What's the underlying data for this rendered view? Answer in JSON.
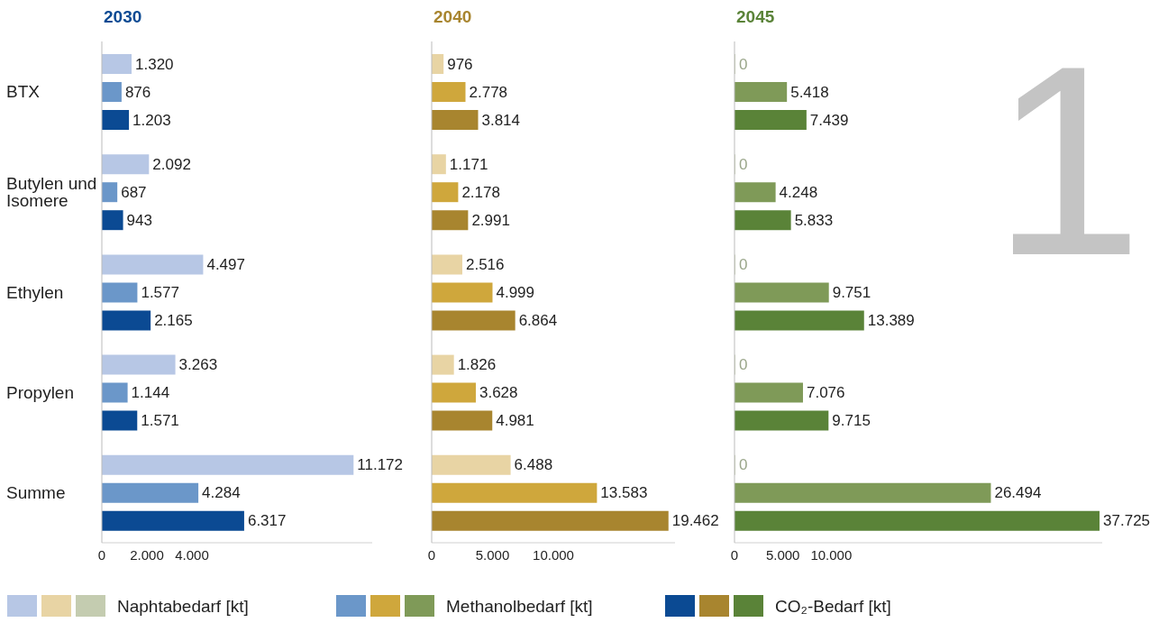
{
  "chart_data": [
    {
      "type": "bar",
      "orientation": "horizontal",
      "title": "2030",
      "categories": [
        "BTX",
        "Butylen und Isomere",
        "Ethylen",
        "Propylen",
        "Summe"
      ],
      "xlim": [
        0,
        12000
      ],
      "xticks": [
        {
          "value": 0,
          "label": "0"
        },
        {
          "value": 2000,
          "label": "2.000"
        },
        {
          "value": 4000,
          "label": "4.000"
        }
      ],
      "series": [
        {
          "color": "#b7c7e5",
          "values": [
            1320,
            2092,
            4497,
            3263,
            11172
          ],
          "value_labels": [
            "1.320",
            "2.092",
            "4.497",
            "3.263",
            "11.172"
          ]
        },
        {
          "color": "#6b97c9",
          "values": [
            876,
            687,
            1577,
            1144,
            4284
          ],
          "value_labels": [
            "876",
            "687",
            "1.577",
            "1.144",
            "4.284"
          ]
        },
        {
          "color": "#0b4a93",
          "values": [
            1203,
            943,
            2165,
            1571,
            6317
          ],
          "value_labels": [
            "1.203",
            "943",
            "2.165",
            "1.571",
            "6.317"
          ]
        }
      ]
    },
    {
      "type": "bar",
      "orientation": "horizontal",
      "title": "2040",
      "tick_labels": "x",
      "xlim": [
        0,
        20000
      ],
      "xticks": [
        {
          "value": 0,
          "label": "0"
        },
        {
          "value": 5000,
          "label": "5.000"
        },
        {
          "value": 10000,
          "label": "10.000"
        }
      ],
      "series": [
        {
          "color": "#e8d4a4",
          "values": [
            976,
            1171,
            2516,
            1826,
            6488
          ],
          "value_labels": [
            "976",
            "1.171",
            "2.516",
            "1.826",
            "6.488"
          ]
        },
        {
          "color": "#cfa73c",
          "values": [
            2778,
            2178,
            4999,
            3628,
            13583
          ],
          "value_labels": [
            "2.778",
            "2.178",
            "4.999",
            "3.628",
            "13.583"
          ]
        },
        {
          "color": "#a8852f",
          "values": [
            3814,
            2991,
            6864,
            4981,
            19462
          ],
          "value_labels": [
            "3.814",
            "2.991",
            "6.864",
            "4.981",
            "19.462"
          ]
        }
      ]
    },
    {
      "type": "bar",
      "orientation": "horizontal",
      "title": "2045",
      "tick_labels": "x",
      "xlim": [
        0,
        38000
      ],
      "xticks": [
        {
          "value": 0,
          "label": "0"
        },
        {
          "value": 5000,
          "label": "5.000"
        },
        {
          "value": 10000,
          "label": "10.000"
        }
      ],
      "annotations": [
        "1"
      ],
      "legend": "bottom",
      "series": [
        {
          "name": "Naphtabedarf [kt]",
          "color": "#c4ccb0",
          "values": [
            0,
            0,
            0,
            0,
            0
          ],
          "value_labels": [
            "0",
            "0",
            "0",
            "0",
            "0"
          ]
        },
        {
          "name": "Methanolbedarf [kt]",
          "color": "#7f9a58",
          "values": [
            5418,
            4248,
            9751,
            7076,
            26494
          ],
          "value_labels": [
            "5.418",
            "4.248",
            "9.751",
            "7.076",
            "26.494"
          ]
        },
        {
          "name": "CO₂-Bedarf [kt]",
          "color": "#5a8338",
          "values": [
            7439,
            5833,
            13389,
            9715,
            37725
          ],
          "value_labels": [
            "7.439",
            "5.833",
            "13.389",
            "9.715",
            "37.725"
          ]
        }
      ]
    }
  ]
}
